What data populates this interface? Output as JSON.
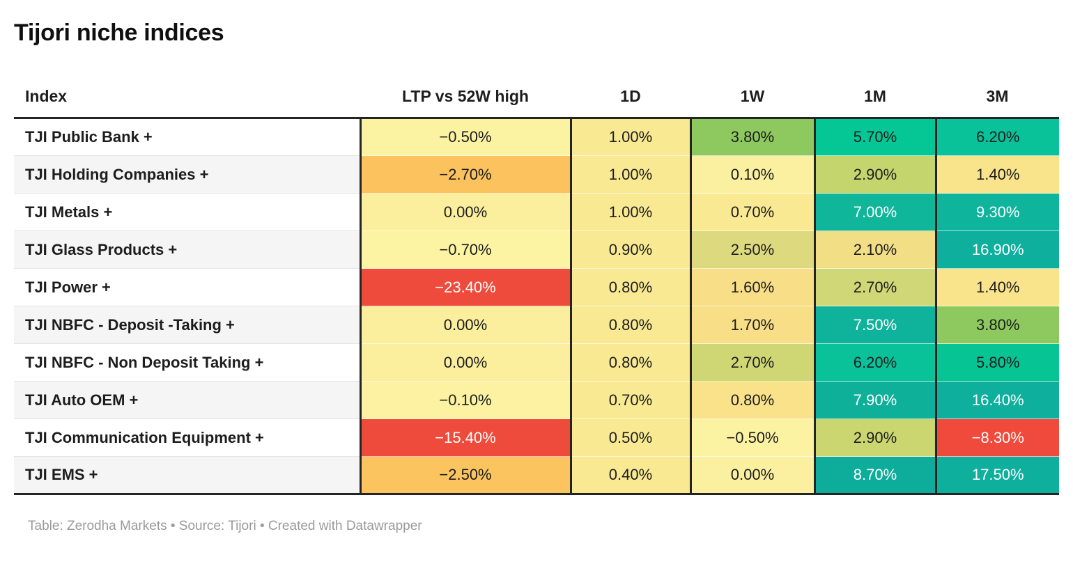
{
  "title": "Tijori niche indices",
  "table": {
    "columns": [
      "Index",
      "LTP vs 52W high",
      "1D",
      "1W",
      "1M",
      "3M"
    ],
    "rows": [
      {
        "index": "TJI Public Bank +",
        "cells": [
          {
            "v": "−0.50%",
            "bg": "#FCF3A2",
            "fg": "#1d1d1d"
          },
          {
            "v": "1.00%",
            "bg": "#F9E992",
            "fg": "#1d1d1d"
          },
          {
            "v": "3.80%",
            "bg": "#8DC95E",
            "fg": "#1d1d1d"
          },
          {
            "v": "5.70%",
            "bg": "#04C795",
            "fg": "#1d1d1d"
          },
          {
            "v": "6.20%",
            "bg": "#09C29A",
            "fg": "#1d1d1d"
          }
        ]
      },
      {
        "index": "TJI Holding Companies +",
        "cells": [
          {
            "v": "−2.70%",
            "bg": "#FBC25D",
            "fg": "#1d1d1d"
          },
          {
            "v": "1.00%",
            "bg": "#F9E992",
            "fg": "#1d1d1d"
          },
          {
            "v": "0.10%",
            "bg": "#FBF0A0",
            "fg": "#1d1d1d"
          },
          {
            "v": "2.90%",
            "bg": "#C5D56E",
            "fg": "#1d1d1d"
          },
          {
            "v": "1.40%",
            "bg": "#F9E48C",
            "fg": "#1d1d1d"
          }
        ]
      },
      {
        "index": "TJI Metals +",
        "cells": [
          {
            "v": "0.00%",
            "bg": "#FBEF9E",
            "fg": "#1d1d1d"
          },
          {
            "v": "1.00%",
            "bg": "#F9E992",
            "fg": "#1d1d1d"
          },
          {
            "v": "0.70%",
            "bg": "#F9E992",
            "fg": "#1d1d1d"
          },
          {
            "v": "7.00%",
            "bg": "#0FB69A",
            "fg": "#ffffff"
          },
          {
            "v": "9.30%",
            "bg": "#0FB49C",
            "fg": "#ffffff"
          }
        ]
      },
      {
        "index": "TJI Glass Products +",
        "cells": [
          {
            "v": "−0.70%",
            "bg": "#FDF4A3",
            "fg": "#1d1d1d"
          },
          {
            "v": "0.90%",
            "bg": "#F9E992",
            "fg": "#1d1d1d"
          },
          {
            "v": "2.50%",
            "bg": "#DCD97E",
            "fg": "#1d1d1d"
          },
          {
            "v": "2.10%",
            "bg": "#F2DE85",
            "fg": "#1d1d1d"
          },
          {
            "v": "16.90%",
            "bg": "#0EAF9C",
            "fg": "#ffffff"
          }
        ]
      },
      {
        "index": "TJI Power +",
        "cells": [
          {
            "v": "−23.40%",
            "bg": "#EE4B3C",
            "fg": "#ffffff"
          },
          {
            "v": "0.80%",
            "bg": "#F9E992",
            "fg": "#1d1d1d"
          },
          {
            "v": "1.60%",
            "bg": "#F8DF87",
            "fg": "#1d1d1d"
          },
          {
            "v": "2.70%",
            "bg": "#D0D776",
            "fg": "#1d1d1d"
          },
          {
            "v": "1.40%",
            "bg": "#F9E48C",
            "fg": "#1d1d1d"
          }
        ]
      },
      {
        "index": "TJI NBFC - Deposit -Taking +",
        "cells": [
          {
            "v": "0.00%",
            "bg": "#FBEF9E",
            "fg": "#1d1d1d"
          },
          {
            "v": "0.80%",
            "bg": "#F9E992",
            "fg": "#1d1d1d"
          },
          {
            "v": "1.70%",
            "bg": "#F8DE86",
            "fg": "#1d1d1d"
          },
          {
            "v": "7.50%",
            "bg": "#0FB29B",
            "fg": "#ffffff"
          },
          {
            "v": "3.80%",
            "bg": "#8DC95E",
            "fg": "#1d1d1d"
          }
        ]
      },
      {
        "index": "TJI NBFC - Non Deposit Taking +",
        "cells": [
          {
            "v": "0.00%",
            "bg": "#FBEF9E",
            "fg": "#1d1d1d"
          },
          {
            "v": "0.80%",
            "bg": "#F9E992",
            "fg": "#1d1d1d"
          },
          {
            "v": "2.70%",
            "bg": "#CFD775",
            "fg": "#1d1d1d"
          },
          {
            "v": "6.20%",
            "bg": "#09C29A",
            "fg": "#1d1d1d"
          },
          {
            "v": "5.80%",
            "bg": "#06C494",
            "fg": "#1d1d1d"
          }
        ]
      },
      {
        "index": "TJI Auto OEM +",
        "cells": [
          {
            "v": "−0.10%",
            "bg": "#FCF2A1",
            "fg": "#1d1d1d"
          },
          {
            "v": "0.70%",
            "bg": "#F9E992",
            "fg": "#1d1d1d"
          },
          {
            "v": "0.80%",
            "bg": "#F9E28A",
            "fg": "#1d1d1d"
          },
          {
            "v": "7.90%",
            "bg": "#0FB099",
            "fg": "#ffffff"
          },
          {
            "v": "16.40%",
            "bg": "#0EAF9C",
            "fg": "#ffffff"
          }
        ]
      },
      {
        "index": "TJI Communication Equipment +",
        "cells": [
          {
            "v": "−15.40%",
            "bg": "#EE4B3C",
            "fg": "#ffffff"
          },
          {
            "v": "0.50%",
            "bg": "#F9E992",
            "fg": "#1d1d1d"
          },
          {
            "v": "−0.50%",
            "bg": "#FCF3A2",
            "fg": "#1d1d1d"
          },
          {
            "v": "2.90%",
            "bg": "#CCD671",
            "fg": "#1d1d1d"
          },
          {
            "v": "−8.30%",
            "bg": "#EF4A3C",
            "fg": "#ffffff"
          }
        ]
      },
      {
        "index": "TJI EMS +",
        "cells": [
          {
            "v": "−2.50%",
            "bg": "#FBC45F",
            "fg": "#1d1d1d"
          },
          {
            "v": "0.40%",
            "bg": "#F9E992",
            "fg": "#1d1d1d"
          },
          {
            "v": "0.00%",
            "bg": "#FBF0A0",
            "fg": "#1d1d1d"
          },
          {
            "v": "8.70%",
            "bg": "#0EAC9B",
            "fg": "#ffffff"
          },
          {
            "v": "17.50%",
            "bg": "#0EAF9C",
            "fg": "#ffffff"
          }
        ]
      }
    ]
  },
  "footer": {
    "text": "Table: Zerodha Markets • Source: Tijori • Created with Datawrapper"
  },
  "chart_data": {
    "type": "table",
    "title": "Tijori niche indices",
    "row_labels": [
      "TJI Public Bank +",
      "TJI Holding Companies +",
      "TJI Metals +",
      "TJI Glass Products +",
      "TJI Power +",
      "TJI NBFC - Deposit -Taking +",
      "TJI NBFC - Non Deposit Taking +",
      "TJI Auto OEM +",
      "TJI Communication Equipment +",
      "TJI EMS +"
    ],
    "columns": [
      "LTP vs 52W high",
      "1D",
      "1W",
      "1M",
      "3M"
    ],
    "values_pct": [
      [
        -0.5,
        1.0,
        3.8,
        5.7,
        6.2
      ],
      [
        -2.7,
        1.0,
        0.1,
        2.9,
        1.4
      ],
      [
        0.0,
        1.0,
        0.7,
        7.0,
        9.3
      ],
      [
        -0.7,
        0.9,
        2.5,
        2.1,
        16.9
      ],
      [
        -23.4,
        0.8,
        1.6,
        2.7,
        1.4
      ],
      [
        0.0,
        0.8,
        1.7,
        7.5,
        3.8
      ],
      [
        0.0,
        0.8,
        2.7,
        6.2,
        5.8
      ],
      [
        -0.1,
        0.7,
        0.8,
        7.9,
        16.4
      ],
      [
        -15.4,
        0.5,
        -0.5,
        2.9,
        -8.3
      ],
      [
        -2.5,
        0.4,
        0.0,
        8.7,
        17.5
      ]
    ],
    "heatmap_palette": {
      "strong_negative": "#EE4B3C",
      "mild_negative": "#FBC45F",
      "neutral": "#FBF0A0",
      "mild_positive": "#8DC95E",
      "positive": "#04C795",
      "strong_positive": "#0FB29B"
    },
    "layout_hints": {
      "heatmap_colored_columns": true,
      "first_column_striped_rows": true,
      "thick_rules": "above body and below last row"
    }
  }
}
